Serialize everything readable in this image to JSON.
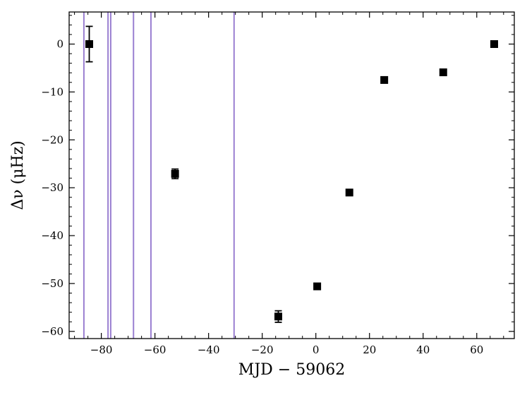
{
  "chart_data": {
    "type": "scatter",
    "xlabel": "MJD − 59062",
    "ylabel": "Δν (μHz)",
    "xlim": [
      -92,
      74
    ],
    "ylim": [
      -61.5,
      6.7
    ],
    "x_ticks_major": [
      -80,
      -60,
      -40,
      -20,
      0,
      20,
      40,
      60
    ],
    "x_tick_labels": [
      "−80",
      "−60",
      "−40",
      "−20",
      "0",
      "20",
      "40",
      "60"
    ],
    "y_ticks_major": [
      0,
      -10,
      -20,
      -30,
      -40,
      -50,
      -60
    ],
    "y_tick_labels": [
      "0",
      "−10",
      "−20",
      "−30",
      "−40",
      "−50",
      "−60"
    ],
    "x_minor_step": 5,
    "y_minor_step": 2,
    "grid": false,
    "marker": "square",
    "marker_color": "#000000",
    "vline_color": "#9a7fd1",
    "vertical_lines_x": [
      -86.5,
      -77.5,
      -76.5,
      -68.0,
      -61.5,
      -30.5
    ],
    "points": [
      {
        "x": -84.5,
        "y": 0.0,
        "yerr": 3.7
      },
      {
        "x": -52.5,
        "y": -27.1,
        "yerr": 1.0
      },
      {
        "x": -14.0,
        "y": -56.9,
        "yerr": 1.2
      },
      {
        "x": 0.5,
        "y": -50.6,
        "yerr": 0.4
      },
      {
        "x": 12.5,
        "y": -31.0,
        "yerr": 0.4
      },
      {
        "x": 25.5,
        "y": -7.5,
        "yerr": 0.3
      },
      {
        "x": 47.5,
        "y": -5.9,
        "yerr": 0.3
      },
      {
        "x": 66.5,
        "y": 0.0,
        "yerr": 0.3
      }
    ]
  }
}
